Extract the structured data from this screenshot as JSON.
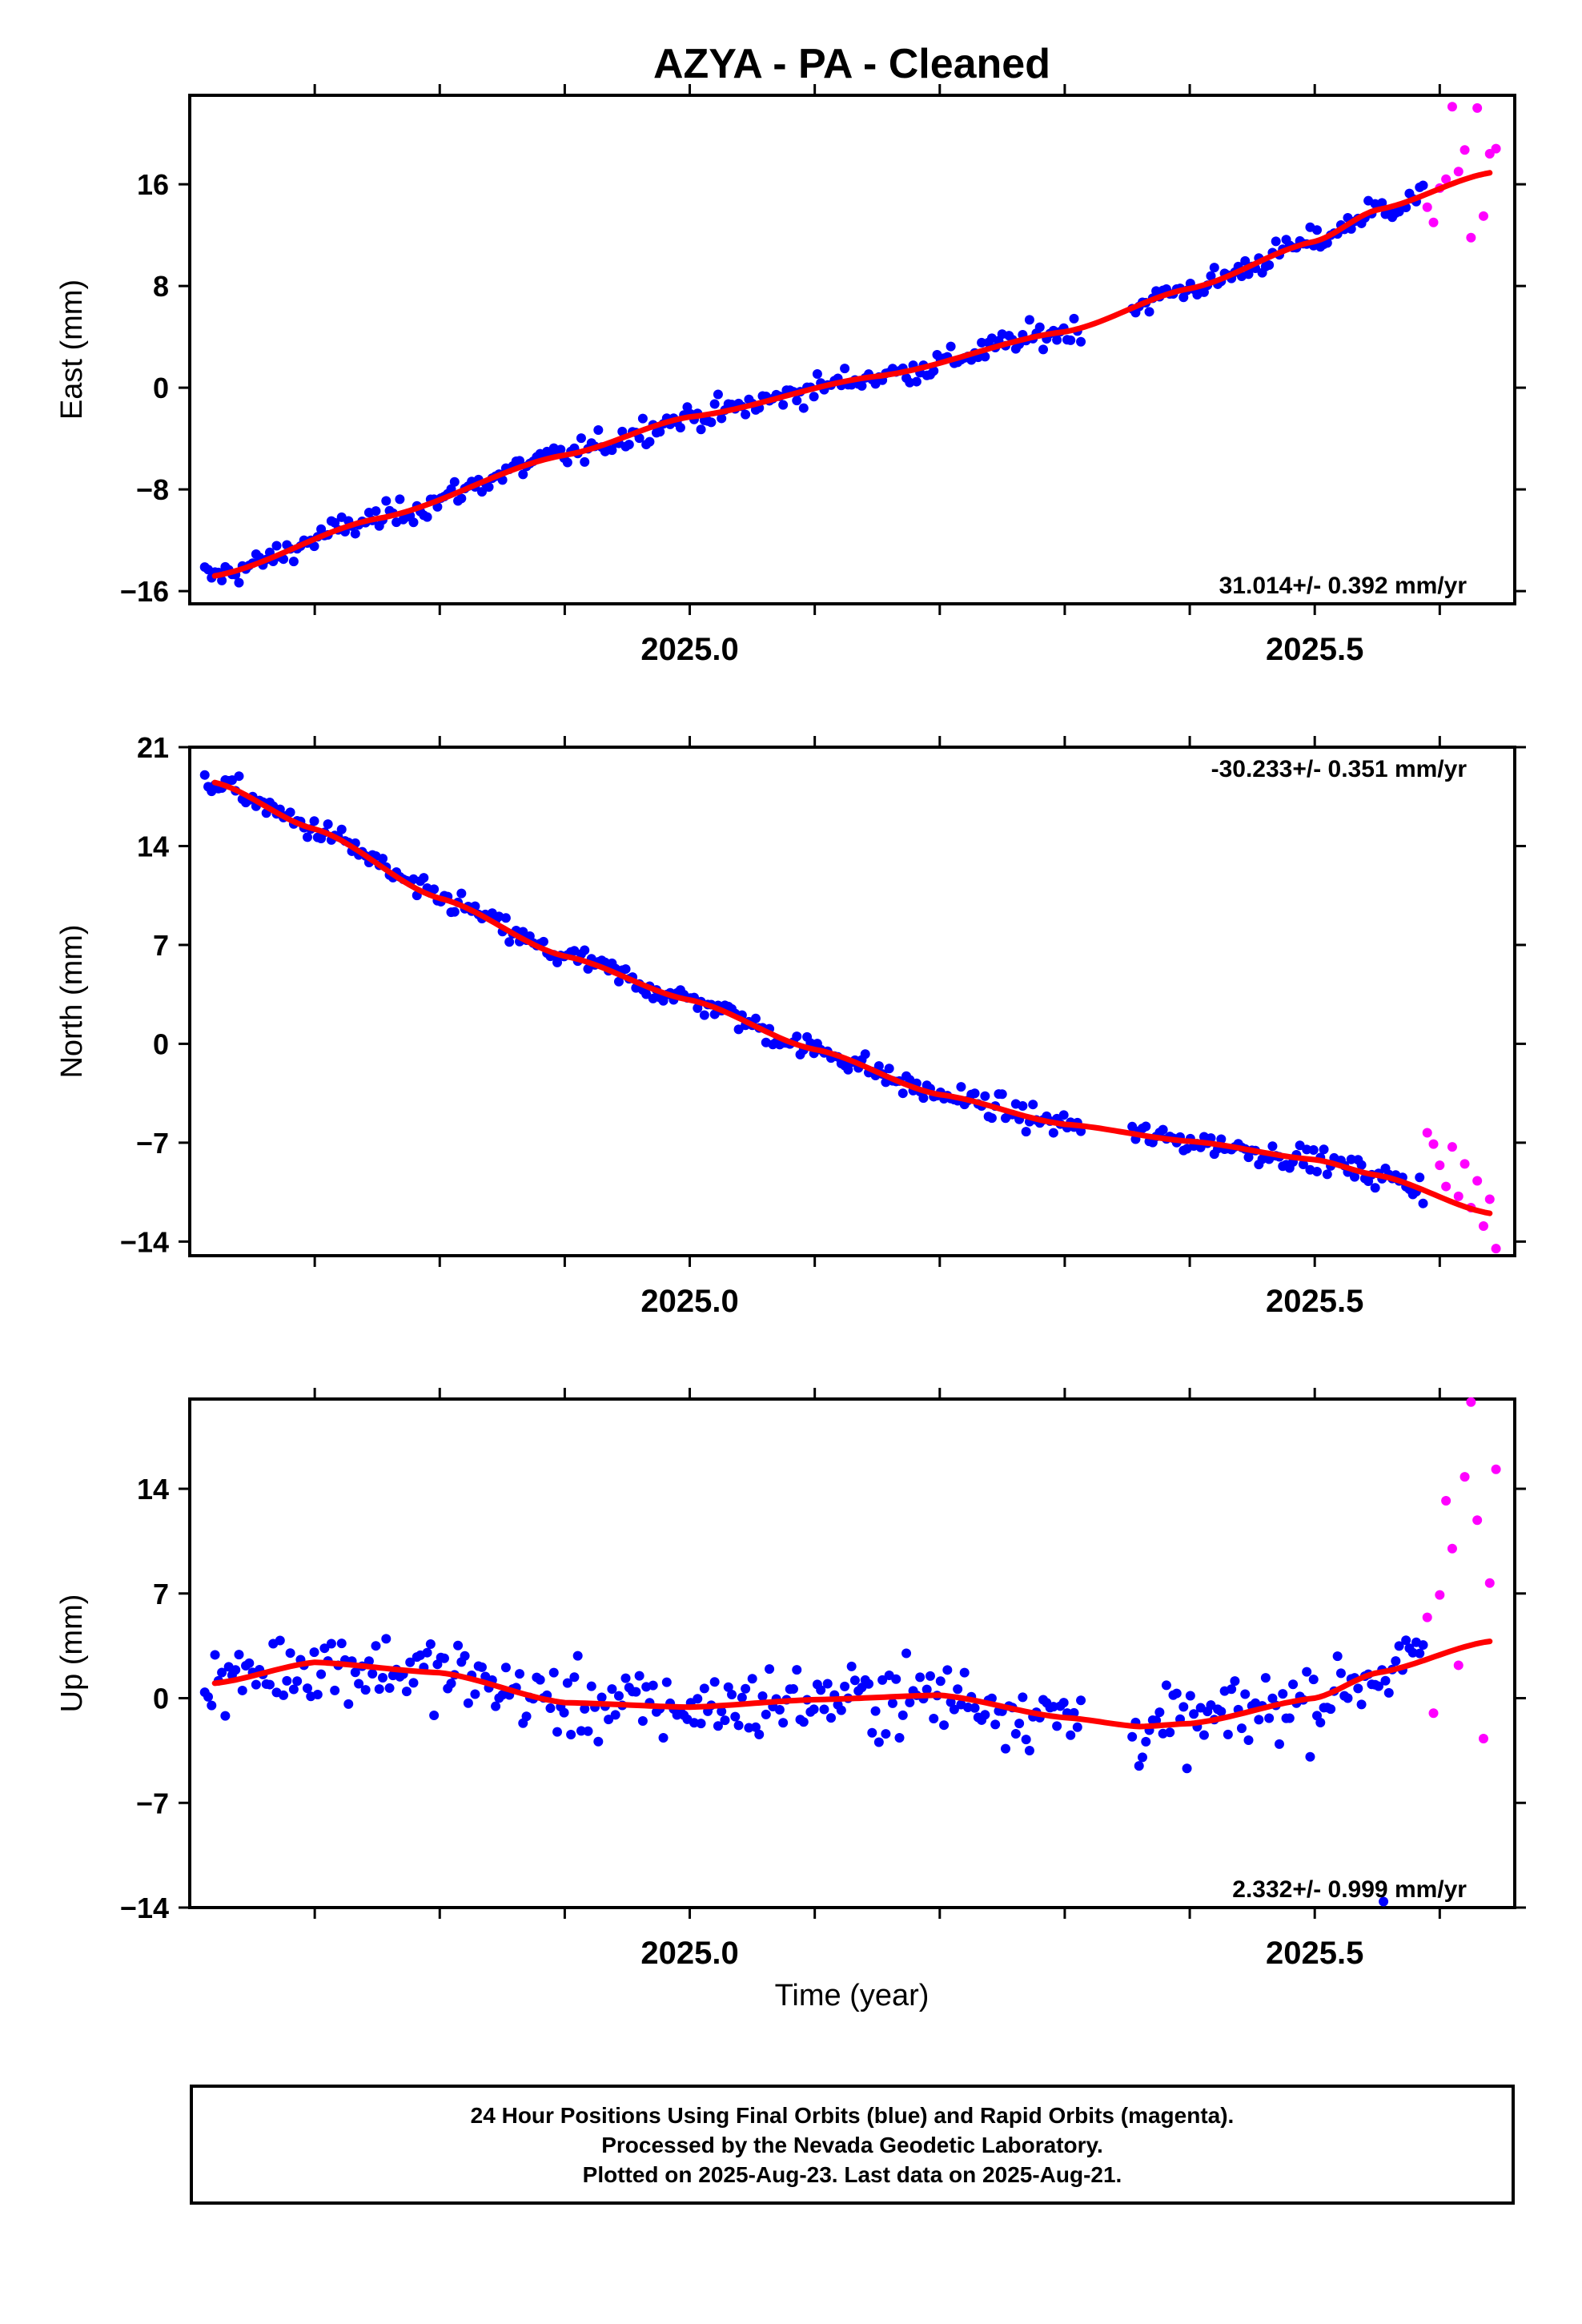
{
  "title": "AZYA  - PA - Cleaned",
  "xlabel": "Time (year)",
  "colors": {
    "final_orbits": "#0000ff",
    "rapid_orbits": "#ff00ff",
    "model": "#ff0000"
  },
  "footer": {
    "line1": "24 Hour Positions Using Final Orbits (blue) and Rapid Orbits (magenta).",
    "line2": "Processed by the Nevada Geodetic Laboratory.",
    "line3": "Plotted on 2025-Aug-23. Last data on 2025-Aug-21."
  },
  "chart_data": [
    {
      "type": "scatter",
      "component": "east",
      "ylabel": "East (mm)",
      "rate_label": "31.014+/- 0.392 mm/yr",
      "xlim": [
        2024.6,
        2025.66
      ],
      "ylim": [
        -17,
        23
      ],
      "yticks": [
        -16,
        -8,
        0,
        8,
        16
      ],
      "xticks": [
        "2025.0",
        "2025.5"
      ],
      "final_fit": {
        "x": [
          2024.62,
          2024.75,
          2024.9,
          2025.0,
          2025.15,
          2025.3,
          2025.4,
          2025.5,
          2025.55,
          2025.64
        ],
        "y": [
          -14.8,
          -10.3,
          -5.3,
          -2.3,
          0.9,
          4.4,
          7.8,
          11.5,
          14.0,
          16.9
        ]
      },
      "final_noise": 1.1,
      "final_gaps": [
        [
          2025.315,
          2025.352
        ]
      ],
      "rapid_points": {
        "x": [
          2025.59,
          2025.595,
          2025.6,
          2025.605,
          2025.61,
          2025.615,
          2025.62,
          2025.625,
          2025.63,
          2025.635,
          2025.64,
          2025.645
        ],
        "y": [
          14.2,
          13.0,
          15.7,
          16.4,
          22.1,
          17.0,
          18.7,
          11.8,
          22.0,
          13.5,
          18.4,
          18.8
        ]
      },
      "outliers": []
    },
    {
      "type": "scatter",
      "component": "north",
      "ylabel": "North (mm)",
      "rate_label": "-30.233+/- 0.351 mm/yr",
      "xlim": [
        2024.6,
        2025.66
      ],
      "ylim": [
        -15,
        21
      ],
      "yticks": [
        -14,
        -7,
        0,
        7,
        14,
        21
      ],
      "xticks": [
        "2025.0",
        "2025.5"
      ],
      "final_fit": {
        "x": [
          2024.62,
          2024.7,
          2024.8,
          2024.9,
          2025.0,
          2025.1,
          2025.2,
          2025.3,
          2025.4,
          2025.5,
          2025.55,
          2025.64
        ],
        "y": [
          18.5,
          15.2,
          10.3,
          6.2,
          3.1,
          -0.4,
          -3.6,
          -5.7,
          -6.9,
          -8.2,
          -9.3,
          -12.0
        ]
      },
      "final_noise": 0.9,
      "final_gaps": [
        [
          2025.315,
          2025.352
        ]
      ],
      "rapid_points": {
        "x": [
          2025.59,
          2025.595,
          2025.6,
          2025.605,
          2025.61,
          2025.615,
          2025.62,
          2025.625,
          2025.63,
          2025.635,
          2025.64,
          2025.645
        ],
        "y": [
          -6.3,
          -7.1,
          -8.6,
          -10.1,
          -7.3,
          -10.8,
          -8.5,
          -11.6,
          -9.7,
          -12.9,
          -11.0,
          -14.5
        ]
      },
      "outliers": []
    },
    {
      "type": "scatter",
      "component": "up",
      "ylabel": "Up (mm)",
      "rate_label": "2.332+/- 0.999 mm/yr",
      "xlim": [
        2024.6,
        2025.66
      ],
      "ylim": [
        -14,
        20
      ],
      "yticks": [
        -14,
        -7,
        0,
        7,
        14
      ],
      "xticks": [
        "2025.0",
        "2025.5"
      ],
      "final_fit": {
        "x": [
          2024.62,
          2024.7,
          2024.8,
          2024.9,
          2025.0,
          2025.1,
          2025.2,
          2025.3,
          2025.36,
          2025.4,
          2025.5,
          2025.55,
          2025.64
        ],
        "y": [
          1.0,
          2.4,
          1.7,
          -0.3,
          -0.6,
          -0.1,
          0.2,
          -1.3,
          -1.9,
          -1.7,
          0.0,
          1.7,
          3.8
        ]
      },
      "final_noise": 2.6,
      "final_gaps": [
        [
          2025.315,
          2025.352
        ]
      ],
      "rapid_points": {
        "x": [
          2025.59,
          2025.595,
          2025.6,
          2025.605,
          2025.61,
          2025.615,
          2025.62,
          2025.625,
          2025.63,
          2025.635,
          2025.64,
          2025.645
        ],
        "y": [
          5.4,
          -1.0,
          6.9,
          13.2,
          10.0,
          2.2,
          14.8,
          19.8,
          11.9,
          -2.7,
          7.7,
          15.3
        ]
      },
      "outliers": [
        {
          "x": 2025.555,
          "y": -13.6
        }
      ]
    }
  ]
}
